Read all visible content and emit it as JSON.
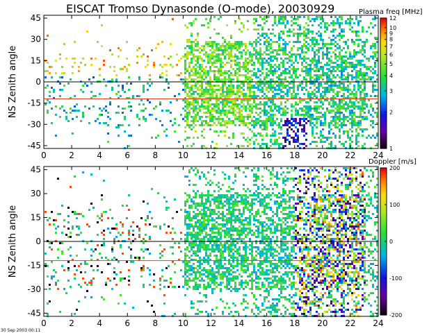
{
  "title": "EISCAT Tromso Dynasonde (O-mode),  20030929",
  "timestamp": "30 Sep 2003 00:11",
  "chart_data": [
    {
      "type": "heatmap",
      "id": "plasma",
      "ylabel": "NS Zenith angle",
      "xlim": [
        0,
        24
      ],
      "ylim": [
        -47,
        47
      ],
      "xticks": [
        "0",
        "2",
        "4",
        "6",
        "8",
        "10",
        "12",
        "14",
        "16",
        "18",
        "20",
        "22",
        "24"
      ],
      "yticks": [
        "45",
        "30",
        "15",
        "0",
        "-15",
        "-30",
        "-45"
      ],
      "hlines": [
        {
          "y": 0,
          "color": "#000000"
        },
        {
          "y": -12,
          "color": "#e0401c"
        }
      ],
      "colorbar": {
        "label": "Plasma freq [MHz]",
        "scale": "log",
        "range": [
          1,
          12
        ],
        "ticks": [
          "12",
          "10",
          "9",
          "8",
          "7",
          "6",
          "5",
          "4",
          "3",
          "2",
          "1"
        ]
      }
    },
    {
      "type": "heatmap",
      "id": "doppler",
      "ylabel": "NS Zenith angle",
      "xlim": [
        0,
        24
      ],
      "ylim": [
        -47,
        47
      ],
      "xticks": [
        "0",
        "2",
        "4",
        "6",
        "8",
        "10",
        "12",
        "14",
        "16",
        "18",
        "20",
        "22",
        "24"
      ],
      "yticks": [
        "45",
        "30",
        "15",
        "0",
        "-15",
        "-30",
        "-45"
      ],
      "hlines": [
        {
          "y": 0,
          "color": "#000000"
        },
        {
          "y": -12,
          "color": "#e0401c"
        }
      ],
      "colorbar": {
        "label": "Doppler [m/s]",
        "scale": "linear",
        "range": [
          -200,
          200
        ],
        "ticks": [
          "200",
          "100",
          "0",
          "-100",
          "-200"
        ]
      }
    }
  ]
}
